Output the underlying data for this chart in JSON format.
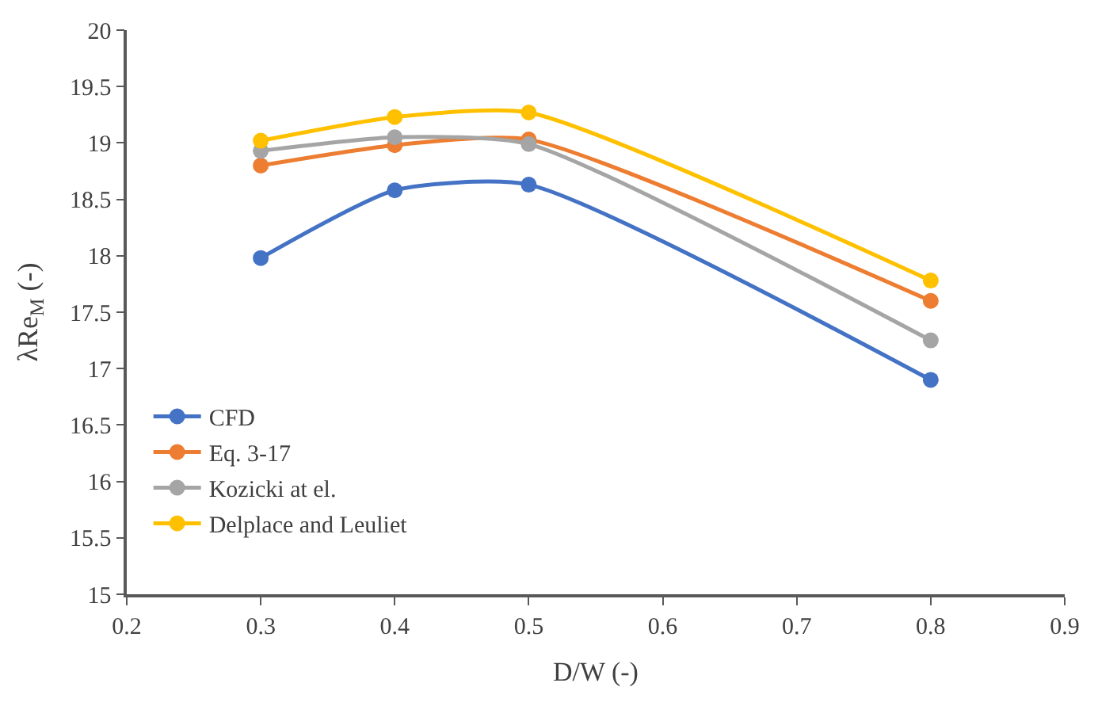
{
  "chart_data": {
    "type": "line",
    "xlabel": "D/W (-)",
    "ylabel": "λRe$_{M}$ (-)",
    "x": [
      0.3,
      0.4,
      0.5,
      0.8
    ],
    "series": [
      {
        "name": "CFD",
        "color": "#4472c4",
        "values": [
          17.98,
          18.58,
          18.63,
          16.9
        ]
      },
      {
        "name": "Eq. 3-17",
        "color": "#ed7d31",
        "values": [
          18.8,
          18.98,
          19.03,
          17.6
        ]
      },
      {
        "name": "Kozicki at el.",
        "color": "#a5a5a5",
        "values": [
          18.93,
          19.05,
          18.99,
          17.25
        ]
      },
      {
        "name": "Delplace and Leuliet",
        "color": "#ffc000",
        "values": [
          19.02,
          19.23,
          19.27,
          17.78
        ]
      }
    ],
    "xlim": [
      0.2,
      0.9
    ],
    "xticks": [
      0.2,
      0.3,
      0.4,
      0.5,
      0.6,
      0.7,
      0.8,
      0.9
    ],
    "ylim": [
      15,
      20
    ],
    "yticks": [
      15,
      15.5,
      16,
      16.5,
      17,
      17.5,
      18,
      18.5,
      19,
      19.5,
      20
    ],
    "legend": "bottom left",
    "marker": "circle",
    "line_style": "solid"
  }
}
